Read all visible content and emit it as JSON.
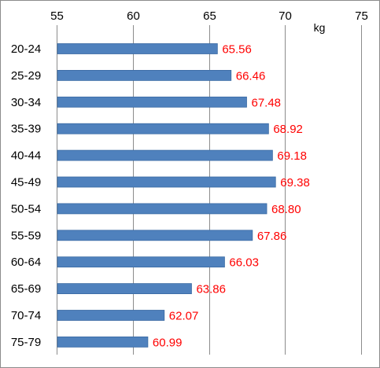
{
  "chart_data": {
    "type": "bar",
    "orientation": "horizontal",
    "title": "",
    "xlabel": "",
    "ylabel": "",
    "unit_label": "kg",
    "xlim": [
      55,
      75
    ],
    "x_ticks": [
      55,
      60,
      65,
      70,
      75
    ],
    "x_tick_labels": [
      "55",
      "60",
      "65",
      "70",
      "75"
    ],
    "x_axis_position": "top",
    "grid": true,
    "categories": [
      "20-24",
      "25-29",
      "30-34",
      "35-39",
      "40-44",
      "45-49",
      "50-54",
      "55-59",
      "60-64",
      "65-69",
      "70-74",
      "75-79"
    ],
    "values": [
      65.56,
      66.46,
      67.48,
      68.92,
      69.18,
      69.38,
      68.8,
      67.86,
      66.03,
      63.86,
      62.07,
      60.99
    ],
    "data_labels": [
      "65.56",
      "66.46",
      "67.48",
      "68.92",
      "69.18",
      "69.38",
      "68.80",
      "67.86",
      "66.03",
      "63.86",
      "62.07",
      "60.99"
    ],
    "bar_color": "#4f81bd",
    "bar_edge_color": "#3a6aa3",
    "label_color": "#ff0000",
    "grid_color": "#8c8c8c"
  }
}
